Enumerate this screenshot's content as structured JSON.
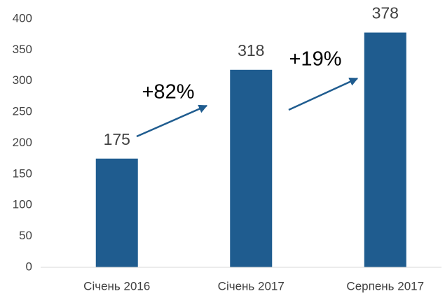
{
  "chart_data": {
    "type": "bar",
    "categories": [
      "Січень 2016",
      "Січень 2017",
      "Серпень 2017"
    ],
    "values": [
      175,
      318,
      378
    ],
    "color": "#1f5c8f",
    "ylim": [
      0,
      400
    ],
    "yticks": [
      0,
      50,
      100,
      150,
      200,
      250,
      300,
      350,
      400
    ],
    "grid": false,
    "annotations": [
      "+82%",
      "+19%"
    ]
  }
}
